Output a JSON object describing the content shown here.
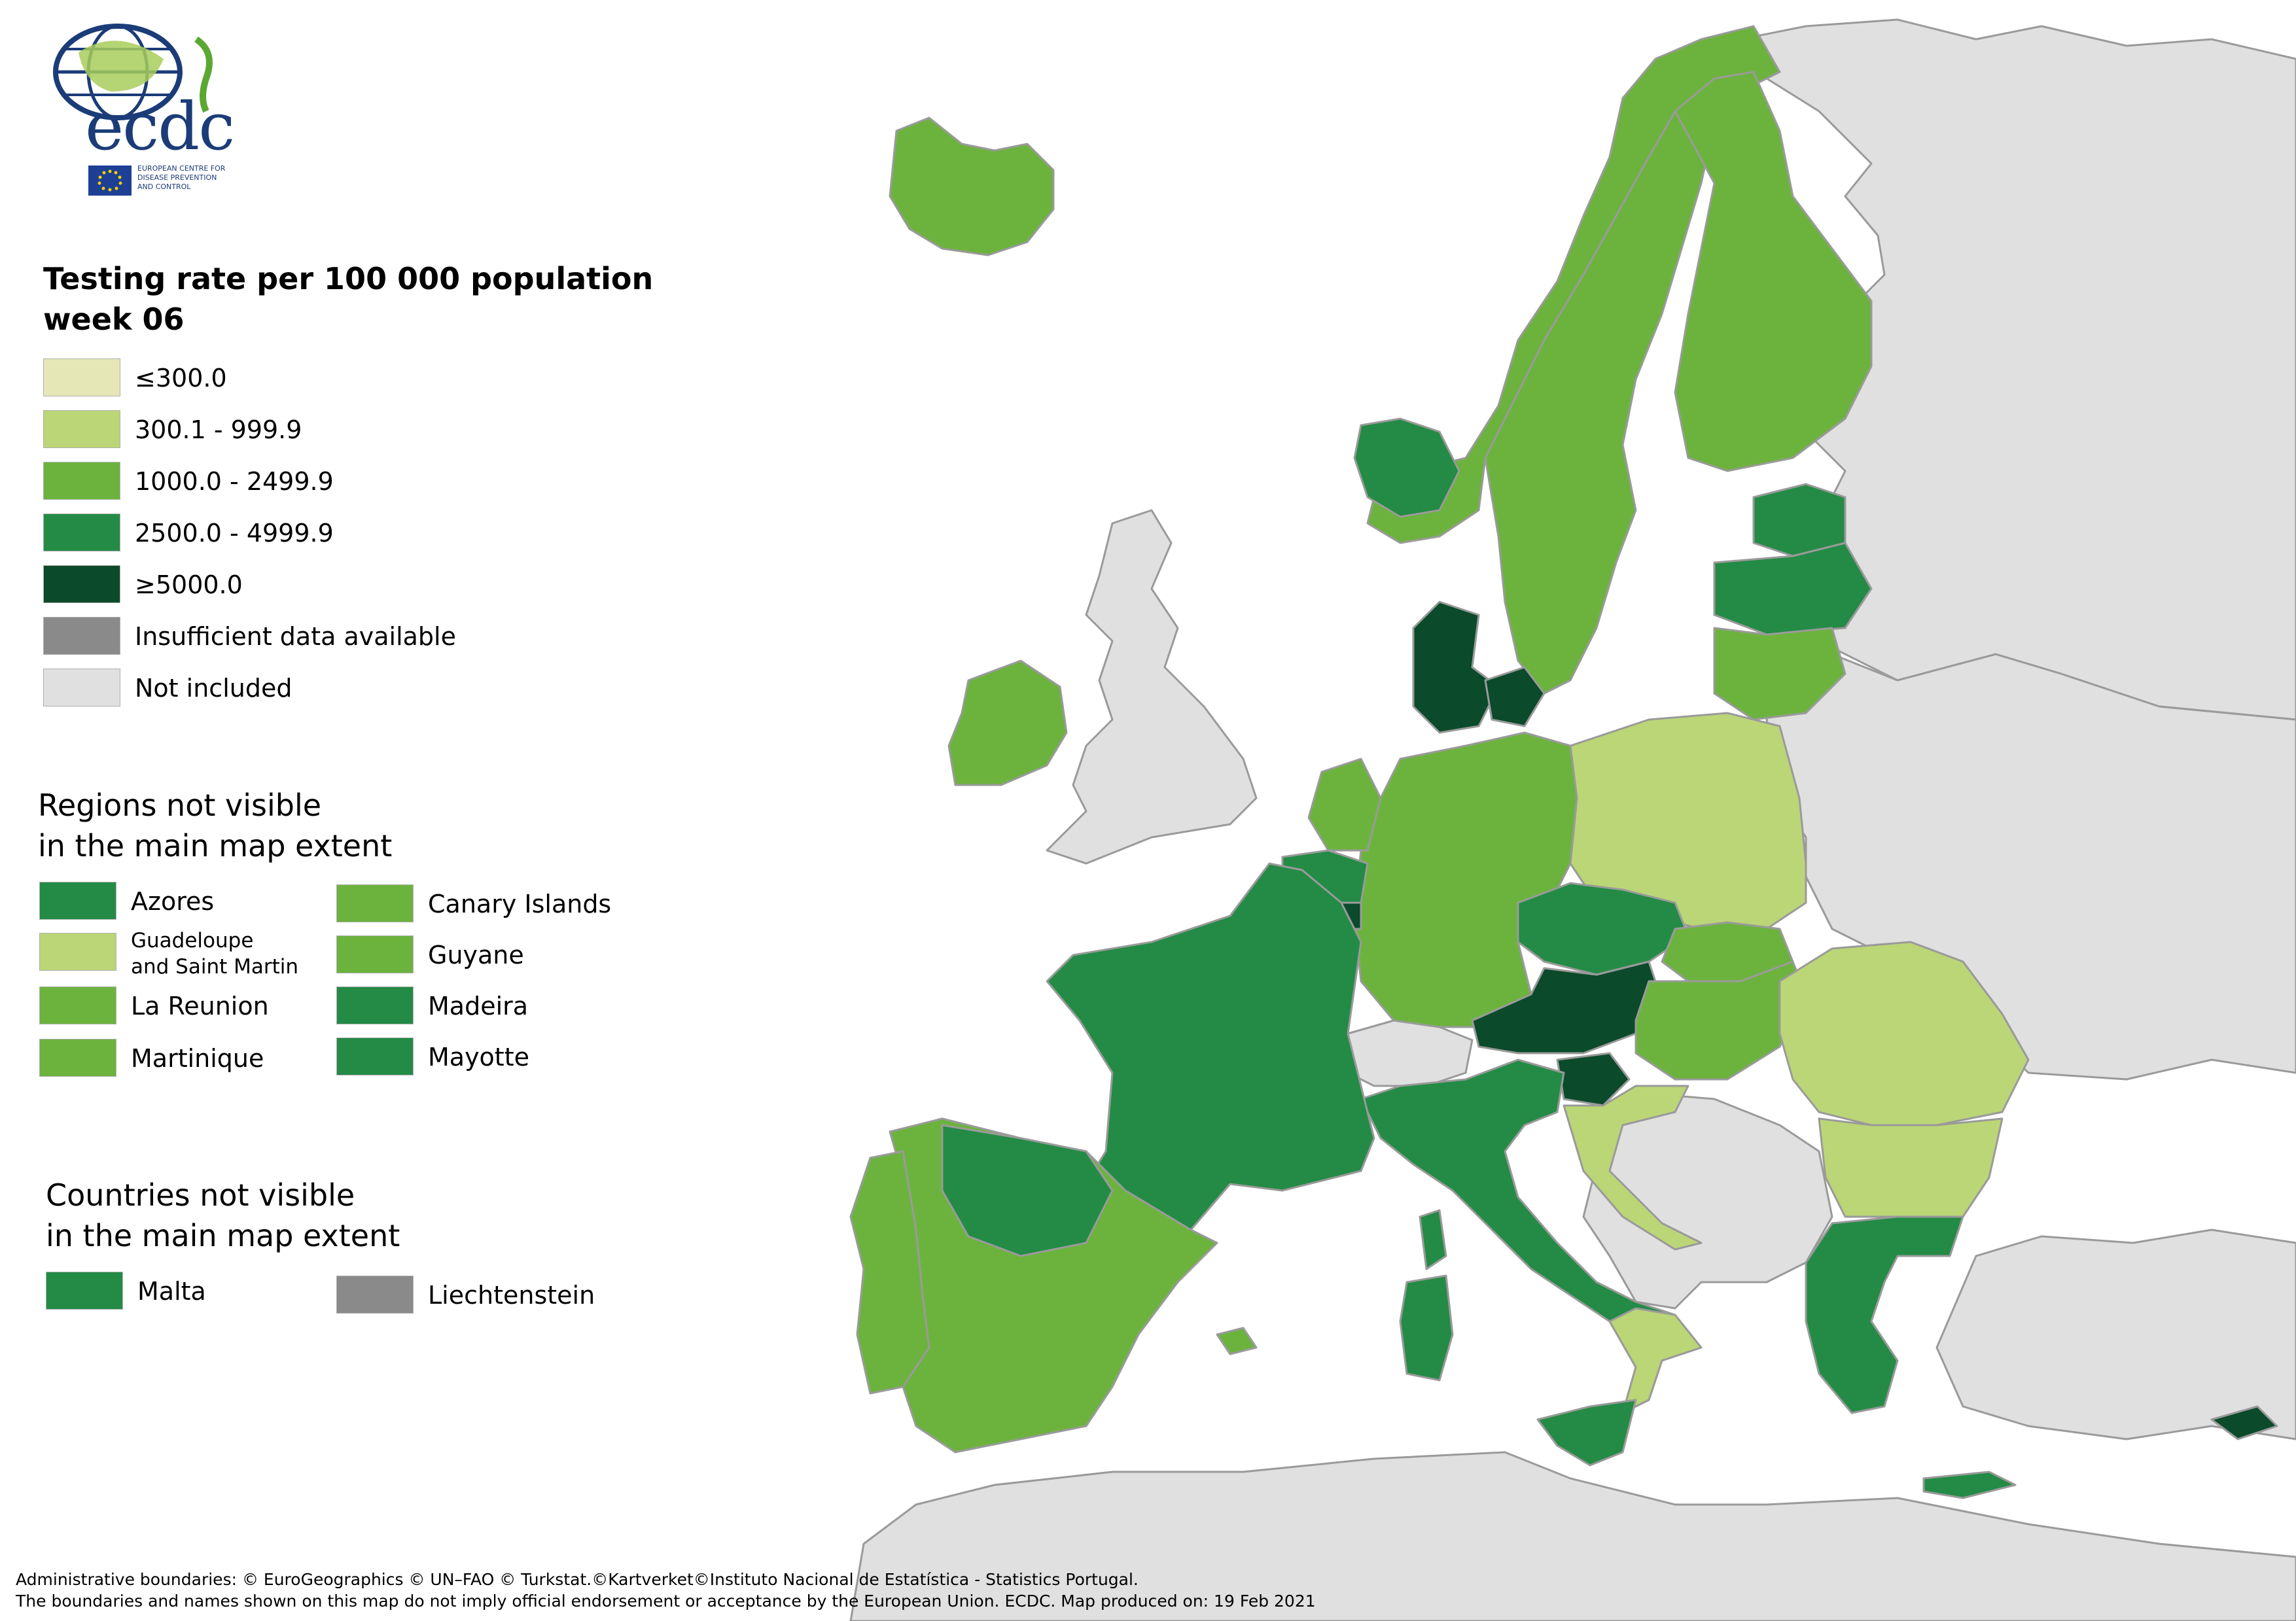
{
  "colors": {
    "le300": "#e5e8b6",
    "c300_999": "#bbd676",
    "c1000_2499": "#6cb33d",
    "c2500_4999": "#238b45",
    "ge5000": "#0b4a2a",
    "insufficient": "#8a8a8a",
    "not_included": "#e0e0e0",
    "boundary": "#7a7a7a"
  },
  "logo": {
    "name": "ecdc",
    "subtitle_line1": "EUROPEAN CENTRE FOR",
    "subtitle_line2": "DISEASE PREVENTION",
    "subtitle_line3": "AND CONTROL"
  },
  "legend": {
    "title_line1": "Testing rate per 100 000 population",
    "title_line2": "week 06",
    "items": [
      {
        "label": "≤300.0",
        "color": "#e5e8b6"
      },
      {
        "label": "300.1 - 999.9",
        "color": "#bbd676"
      },
      {
        "label": "1000.0 - 2499.9",
        "color": "#6cb33d"
      },
      {
        "label": "2500.0 - 4999.9",
        "color": "#238b45"
      },
      {
        "label": "≥5000.0",
        "color": "#0b4a2a"
      },
      {
        "label": "Insufficient data available",
        "color": "#8a8a8a"
      },
      {
        "label": "Not included",
        "color": "#e0e0e0"
      }
    ]
  },
  "regions_section": {
    "title_line1": "Regions not visible",
    "title_line2": "in the main map extent",
    "items": [
      {
        "label": "Azores",
        "color": "#238b45"
      },
      {
        "label_line1": "Guadeloupe",
        "label_line2": "and Saint Martin",
        "color": "#bbd676"
      },
      {
        "label": "La Reunion",
        "color": "#6cb33d"
      },
      {
        "label": "Martinique",
        "color": "#6cb33d"
      },
      {
        "label": "Canary Islands",
        "color": "#6cb33d"
      },
      {
        "label": "Guyane",
        "color": "#6cb33d"
      },
      {
        "label": "Madeira",
        "color": "#238b45"
      },
      {
        "label": "Mayotte",
        "color": "#238b45"
      }
    ]
  },
  "countries_section": {
    "title_line1": "Countries not visible",
    "title_line2": "in the main map extent",
    "items": [
      {
        "label": "Malta",
        "color": "#238b45"
      },
      {
        "label": "Liechtenstein",
        "color": "#8a8a8a"
      }
    ]
  },
  "footer": {
    "line1": "Administrative boundaries: © EuroGeographics © UN–FAO © Turkstat.©Kartverket©Instituto Nacional de Estatística - Statistics Portugal.",
    "line2": "The boundaries and names shown on this map do not imply official endorsement or acceptance by the European Union. ECDC. Map produced on: 19 Feb 2021"
  }
}
